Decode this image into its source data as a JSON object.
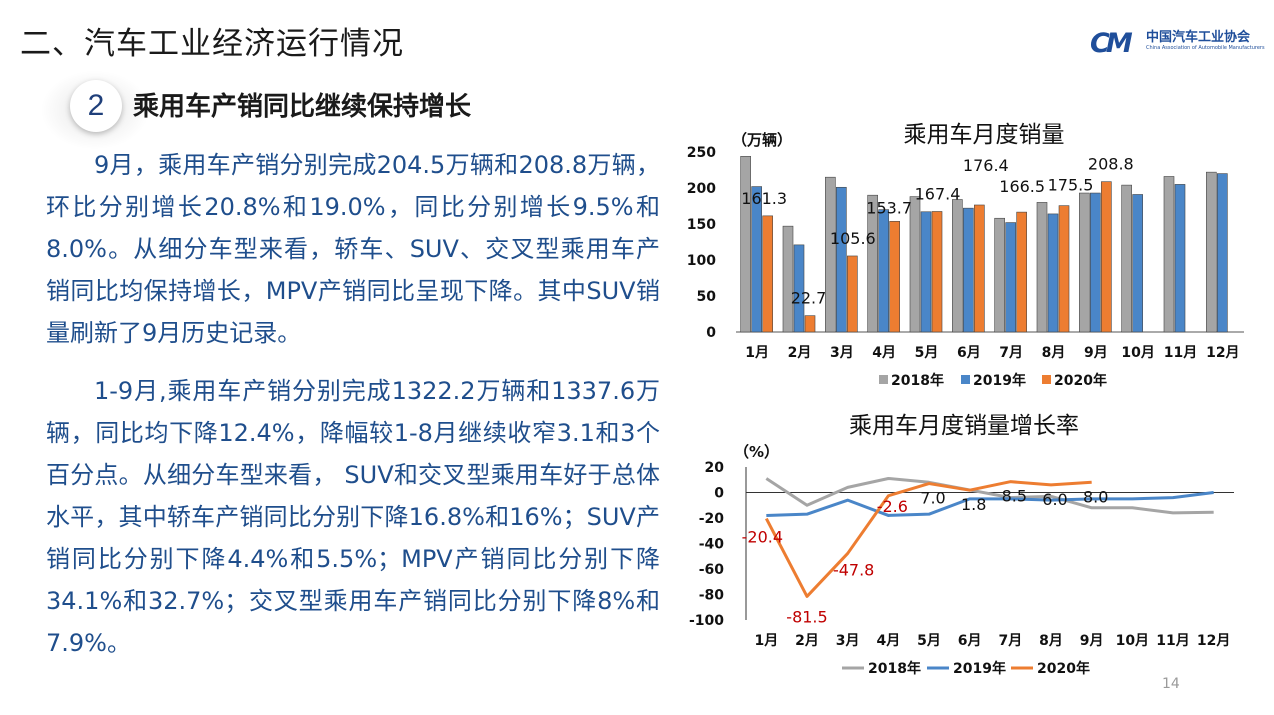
{
  "header": {
    "title": "二、汽车工业经济运行情况",
    "logo_mark": "CM",
    "logo_cn": "中国汽车工业协会",
    "logo_en": "China Association of Automobile Manufacturers"
  },
  "section": {
    "number": "2",
    "title": "乘用车产销同比继续保持增长"
  },
  "paragraphs": [
    "9月，乘用车产销分别完成204.5万辆和208.8万辆，环比分别增长20.8%和19.0%，同比分别增长9.5%和8.0%。从细分车型来看，轿车、SUV、交叉型乘用车产销同比均保持增长，MPV产销同比呈现下降。其中SUV销量刷新了9月历史记录。",
    "1-9月,乘用车产销分别完成1322.2万辆和1337.6万辆，同比均下降12.4%，降幅较1-8月继续收窄3.1和3个百分点。从细分车型来看， SUV和交叉型乘用车好于总体水平，其中轿车产销同比分别下降16.8%和16%；SUV产销同比分别下降4.4%和5.5%；MPV产销同比分别下降34.1%和32.7%；交叉型乘用车产销同比分别下降8%和7.9%。"
  ],
  "page_number": "14",
  "colors": {
    "y2018": "#a5a5a5",
    "y2019": "#4a86c8",
    "y2020": "#ed7d31",
    "text_blue": "#1f4e8c",
    "label_red": "#c00000"
  },
  "chart_data": [
    {
      "type": "bar",
      "title": "乘用车月度销量",
      "ylabel": "（万辆）",
      "ylim": [
        0,
        250
      ],
      "yticks": [
        "0",
        "50",
        "100",
        "150",
        "200",
        "250"
      ],
      "categories": [
        "1月",
        "2月",
        "3月",
        "4月",
        "5月",
        "6月",
        "7月",
        "8月",
        "9月",
        "10月",
        "11月",
        "12月"
      ],
      "series": [
        {
          "name": "2018年",
          "color": "#a5a5a5",
          "values": [
            244,
            147,
            215,
            190,
            188,
            184,
            158,
            180,
            193,
            204,
            216,
            222
          ]
        },
        {
          "name": "2019年",
          "color": "#4a86c8",
          "values": [
            202,
            121,
            201,
            170,
            167,
            172,
            152,
            164,
            193,
            191,
            205,
            220
          ]
        },
        {
          "name": "2020年",
          "color": "#ed7d31",
          "values": [
            161.3,
            22.7,
            105.6,
            153.7,
            167.4,
            176.4,
            166.5,
            175.5,
            208.8,
            null,
            null,
            null
          ]
        }
      ],
      "data_labels": [
        "161.3",
        "22.7",
        "105.6",
        "153.7",
        "167.4",
        "176.4",
        "166.5",
        "175.5",
        "208.8"
      ],
      "legend": "bottom"
    },
    {
      "type": "line",
      "title": "乘用车月度销量增长率",
      "ylabel": "（%）",
      "ylim": [
        -100,
        20
      ],
      "yticks": [
        "20",
        "0",
        "-20",
        "-40",
        "-60",
        "-80",
        "-100"
      ],
      "categories": [
        "1月",
        "2月",
        "3月",
        "4月",
        "5月",
        "6月",
        "7月",
        "8月",
        "9月",
        "10月",
        "11月",
        "12月"
      ],
      "series": [
        {
          "name": "2018年",
          "color": "#a5a5a5",
          "values": [
            11,
            -10,
            4,
            11,
            8,
            2,
            -4,
            -3,
            -12,
            -12,
            -16,
            -15.5
          ]
        },
        {
          "name": "2019年",
          "color": "#4a86c8",
          "values": [
            -18,
            -17,
            -6,
            -18,
            -17,
            -5,
            -5,
            -6,
            -5,
            -5,
            -4,
            0
          ]
        },
        {
          "name": "2020年",
          "color": "#ed7d31",
          "values": [
            -20.4,
            -81.5,
            -47.8,
            -2.6,
            7.0,
            1.8,
            8.5,
            6.0,
            8.0,
            null,
            null,
            null
          ]
        }
      ],
      "data_labels": [
        "-20.4",
        "-81.5",
        "-47.8",
        "-2.6",
        "7.0",
        "1.8",
        "8.5",
        "6.0",
        "8.0"
      ],
      "legend": "bottom"
    }
  ]
}
